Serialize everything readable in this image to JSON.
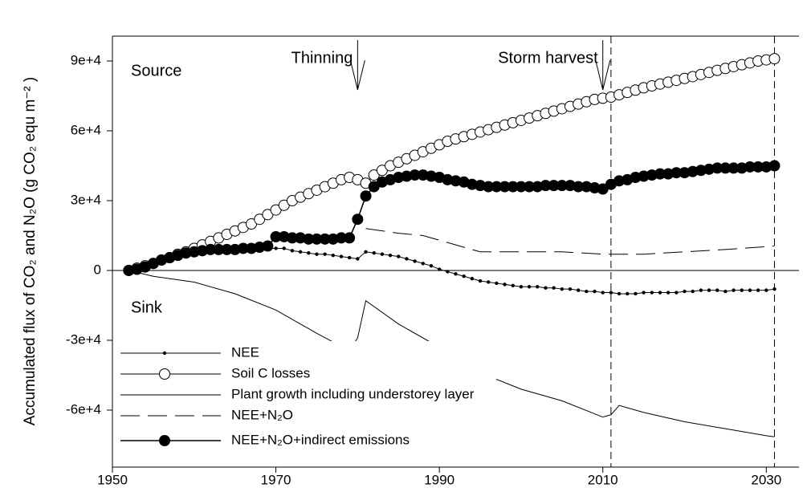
{
  "chart_data": {
    "type": "line",
    "ylabel": "Accumulated flux of CO₂ and N₂O (g CO₂ equ m⁻² )",
    "source_label": "Source",
    "sink_label": "Sink",
    "annotations": [
      {
        "text": "Thinning",
        "x": 1980
      },
      {
        "text": "Storm harvest",
        "x": 2010
      }
    ],
    "vlines": [
      2011,
      2031
    ],
    "xlim": [
      1950,
      2034
    ],
    "xticks": [
      1950,
      1970,
      1990,
      2010,
      2030
    ],
    "ylim": [
      -84500,
      100700
    ],
    "yticks": [
      {
        "value": 90000,
        "label": "9e+4"
      },
      {
        "value": 60000,
        "label": "6e+4"
      },
      {
        "value": 30000,
        "label": "3e+4"
      },
      0,
      {
        "value": -30000,
        "label": "-3e+4"
      },
      {
        "value": -60000,
        "label": "-6e+4"
      }
    ],
    "legend": "lower left",
    "series": [
      {
        "name": "NEE",
        "color": "#000000",
        "marker": "dot",
        "dash": "solid",
        "x": [
          1952,
          1953,
          1954,
          1955,
          1956,
          1957,
          1958,
          1959,
          1960,
          1961,
          1962,
          1963,
          1964,
          1965,
          1966,
          1967,
          1968,
          1969,
          1970,
          1971,
          1972,
          1973,
          1974,
          1975,
          1976,
          1977,
          1978,
          1979,
          1980,
          1981,
          1982,
          1983,
          1984,
          1985,
          1986,
          1987,
          1988,
          1989,
          1990,
          1991,
          1992,
          1993,
          1994,
          1995,
          1996,
          1997,
          1998,
          1999,
          2000,
          2001,
          2002,
          2003,
          2004,
          2005,
          2006,
          2007,
          2008,
          2009,
          2010,
          2011,
          2012,
          2013,
          2014,
          2015,
          2016,
          2017,
          2018,
          2019,
          2020,
          2021,
          2022,
          2023,
          2024,
          2025,
          2026,
          2027,
          2028,
          2029,
          2030,
          2031
        ],
        "values": [
          0,
          500,
          1500,
          2500,
          3500,
          4500,
          5500,
          6500,
          7500,
          8000,
          8500,
          8500,
          9000,
          9000,
          9000,
          9000,
          9500,
          9500,
          9500,
          9500,
          8500,
          8000,
          7500,
          7000,
          7000,
          6500,
          6000,
          5500,
          5000,
          8000,
          7500,
          7000,
          6500,
          6000,
          5000,
          4000,
          3000,
          2000,
          500,
          -500,
          -1500,
          -2500,
          -3500,
          -4500,
          -5000,
          -5500,
          -6000,
          -6500,
          -7000,
          -7000,
          -7000,
          -7500,
          -7500,
          -8000,
          -8000,
          -8500,
          -9000,
          -9000,
          -9500,
          -9500,
          -10000,
          -10000,
          -10000,
          -9500,
          -9500,
          -9500,
          -9500,
          -9500,
          -9000,
          -9000,
          -8500,
          -8500,
          -8500,
          -9000,
          -8500,
          -8500,
          -8500,
          -8500,
          -8500,
          -8000
        ]
      },
      {
        "name": "Soil C losses",
        "color": "#000000",
        "marker": "open-circle",
        "dash": "solid",
        "x": [
          1952,
          1953,
          1954,
          1955,
          1956,
          1957,
          1958,
          1959,
          1960,
          1961,
          1962,
          1963,
          1964,
          1965,
          1966,
          1967,
          1968,
          1969,
          1970,
          1971,
          1972,
          1973,
          1974,
          1975,
          1976,
          1977,
          1978,
          1979,
          1980,
          1981,
          1982,
          1983,
          1984,
          1985,
          1986,
          1987,
          1988,
          1989,
          1990,
          1991,
          1992,
          1993,
          1994,
          1995,
          1996,
          1997,
          1998,
          1999,
          2000,
          2001,
          2002,
          2003,
          2004,
          2005,
          2006,
          2007,
          2008,
          2009,
          2010,
          2011,
          2012,
          2013,
          2014,
          2015,
          2016,
          2017,
          2018,
          2019,
          2020,
          2021,
          2022,
          2023,
          2024,
          2025,
          2026,
          2027,
          2028,
          2029,
          2030,
          2031
        ],
        "values": [
          0,
          1000,
          2000,
          3000,
          4500,
          5500,
          7000,
          8000,
          9500,
          11000,
          12500,
          14000,
          15500,
          17000,
          18500,
          20000,
          22000,
          24000,
          26000,
          28000,
          30000,
          31500,
          33000,
          34500,
          36000,
          37500,
          39000,
          40000,
          39000,
          37500,
          41000,
          43000,
          45000,
          46500,
          48000,
          49500,
          51000,
          52500,
          54000,
          55500,
          56500,
          57500,
          58500,
          59500,
          60500,
          61500,
          62500,
          63500,
          64500,
          65500,
          66500,
          67500,
          68500,
          69500,
          70500,
          71500,
          72500,
          73500,
          74000,
          74500,
          75500,
          76500,
          77500,
          78500,
          79300,
          80100,
          80900,
          81700,
          82500,
          83300,
          84200,
          85100,
          86000,
          86800,
          87600,
          88400,
          89200,
          90000,
          90500,
          91000
        ]
      },
      {
        "name": "Plant growth including understorey layer",
        "color": "#000000",
        "marker": "none",
        "dash": "solid",
        "x": [
          1952,
          1955,
          1960,
          1965,
          1970,
          1975,
          1979,
          1980,
          1981,
          1985,
          1990,
          1995,
          2000,
          2005,
          2010,
          2011,
          2012,
          2015,
          2020,
          2025,
          2030,
          2031
        ],
        "values": [
          0,
          -2500,
          -5000,
          -10000,
          -17000,
          -27000,
          -34500,
          -29000,
          -13000,
          -23000,
          -33000,
          -44000,
          -51000,
          -56000,
          -63000,
          -62000,
          -58000,
          -61000,
          -65000,
          -68000,
          -71000,
          -71500
        ]
      },
      {
        "name": "NEE+N₂O",
        "color": "#000000",
        "marker": "none",
        "dash": "dashed",
        "x": [
          1981,
          1985,
          1988,
          1990,
          1995,
          2000,
          2005,
          2010,
          2011,
          2015,
          2020,
          2025,
          2031
        ],
        "values": [
          18000,
          16000,
          15000,
          13000,
          8000,
          8000,
          8000,
          7000,
          7000,
          7000,
          8000,
          9000,
          10500
        ]
      },
      {
        "name": "NEE+N₂O+indirect emissions",
        "color": "#000000",
        "marker": "filled-circle",
        "dash": "solid",
        "x": [
          1952,
          1953,
          1954,
          1955,
          1956,
          1957,
          1958,
          1959,
          1960,
          1961,
          1962,
          1963,
          1964,
          1965,
          1966,
          1967,
          1968,
          1969,
          1970,
          1971,
          1972,
          1973,
          1974,
          1975,
          1976,
          1977,
          1978,
          1979,
          1980,
          1981,
          1982,
          1983,
          1984,
          1985,
          1986,
          1987,
          1988,
          1989,
          1990,
          1991,
          1992,
          1993,
          1994,
          1995,
          1996,
          1997,
          1998,
          1999,
          2000,
          2001,
          2002,
          2003,
          2004,
          2005,
          2006,
          2007,
          2008,
          2009,
          2010,
          2011,
          2012,
          2013,
          2014,
          2015,
          2016,
          2017,
          2018,
          2019,
          2020,
          2021,
          2022,
          2023,
          2024,
          2025,
          2026,
          2027,
          2028,
          2029,
          2030,
          2031
        ],
        "values": [
          0,
          500,
          1500,
          3000,
          4500,
          5500,
          6500,
          7500,
          8000,
          8500,
          9000,
          9000,
          9000,
          9000,
          9500,
          9500,
          10000,
          10500,
          14500,
          14500,
          14000,
          14000,
          13500,
          13500,
          13500,
          13500,
          14000,
          14000,
          22000,
          32000,
          36000,
          38000,
          39000,
          40000,
          40500,
          41000,
          41000,
          40500,
          40000,
          39000,
          38500,
          38000,
          37000,
          36500,
          36000,
          36000,
          36000,
          36000,
          36000,
          36000,
          36000,
          36500,
          36500,
          36500,
          36500,
          36000,
          36000,
          35500,
          35000,
          37000,
          38500,
          39000,
          40000,
          40500,
          41000,
          41500,
          41500,
          42000,
          42000,
          42500,
          43000,
          43500,
          44000,
          44000,
          44000,
          44000,
          44500,
          44500,
          44500,
          45000
        ]
      }
    ]
  }
}
